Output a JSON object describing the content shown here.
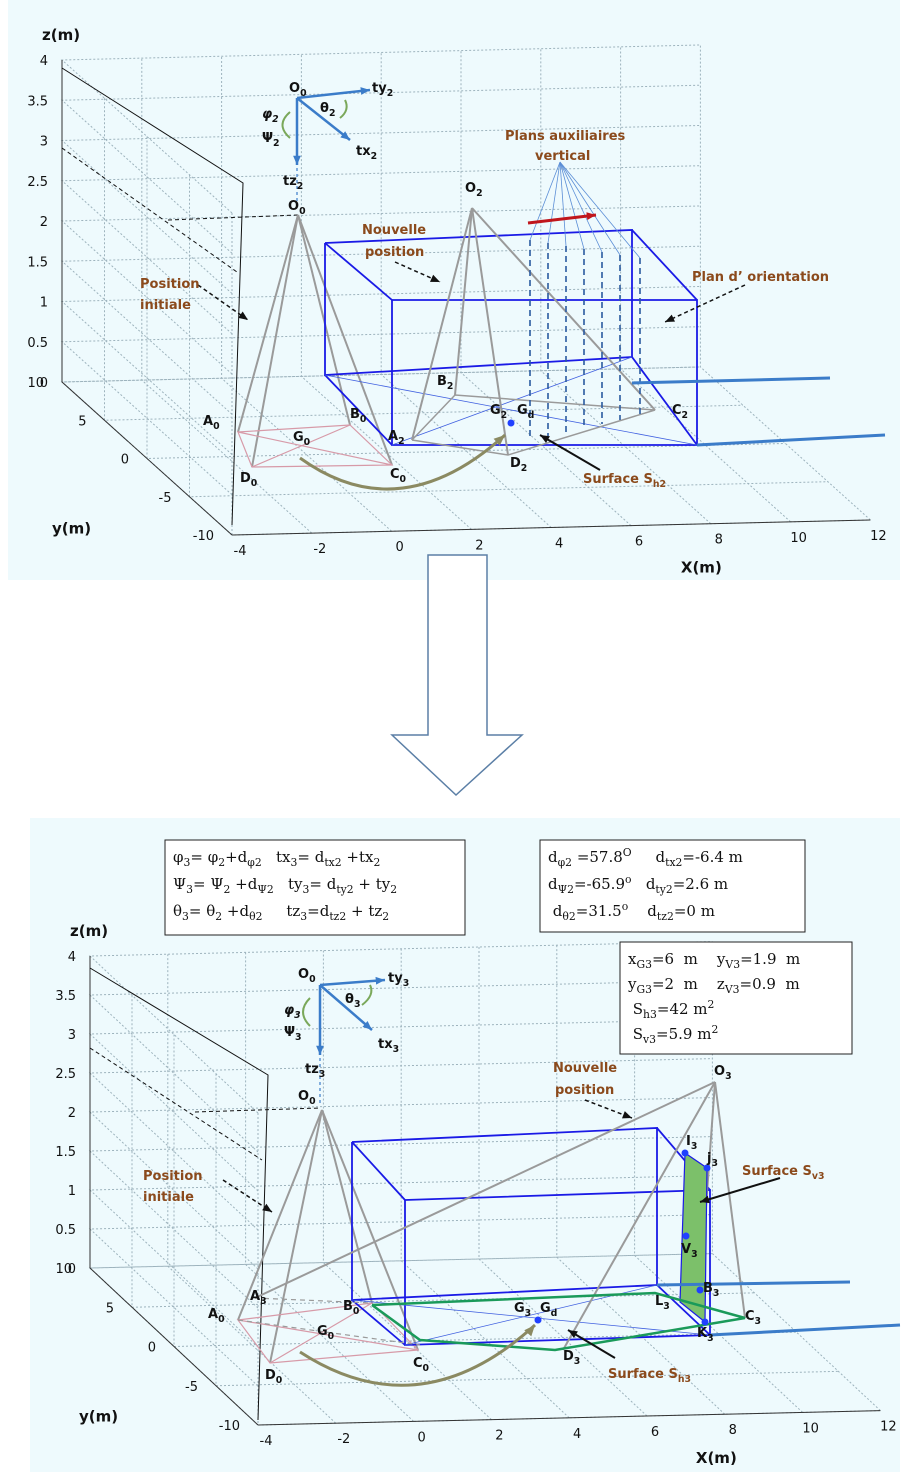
{
  "panel1": {
    "axes": {
      "z_label": "z(m)",
      "y_label": "y(m)",
      "x_label": "X(m)",
      "z_ticks": [
        0,
        0.5,
        1,
        1.5,
        2,
        2.5,
        3,
        3.5,
        4
      ],
      "y_ticks": [
        -10,
        -5,
        0,
        5,
        10
      ],
      "x_ticks": [
        -4,
        -2,
        0,
        2,
        4,
        6,
        8,
        10,
        12
      ]
    },
    "labels": [
      [
        "O",
        {
          "sub": "0"
        }
      ],
      [
        "ty",
        {
          "sub": "2"
        }
      ],
      [
        "θ",
        {
          "sub": "2"
        }
      ],
      [
        "φ",
        {
          "sub": "2"
        }
      ],
      [
        "Ψ",
        {
          "sub": "2"
        }
      ],
      [
        "tx",
        {
          "sub": "2"
        }
      ],
      [
        "tz",
        {
          "sub": "2"
        }
      ],
      [
        "O",
        {
          "sub": "0"
        }
      ],
      [
        "O",
        {
          "sub": "2"
        }
      ],
      [
        "B",
        {
          "sub": "2"
        }
      ],
      [
        "G",
        {
          "sub": "2"
        }
      ],
      [
        "G",
        {
          "sub": "d"
        }
      ],
      [
        "B",
        {
          "sub": "0"
        }
      ],
      [
        "A",
        {
          "sub": "0"
        }
      ],
      [
        "G",
        {
          "sub": "0"
        }
      ],
      [
        "A",
        {
          "sub": "2"
        }
      ],
      [
        "C",
        {
          "sub": "0"
        }
      ],
      [
        "D",
        {
          "sub": "0"
        }
      ],
      [
        "D",
        {
          "sub": "2"
        }
      ],
      [
        "C",
        {
          "sub": "2"
        }
      ]
    ],
    "annotations": [
      [
        "Position"
      ],
      [
        "initiale"
      ],
      [
        "Nouvelle"
      ],
      [
        "position"
      ],
      [
        "Plans auxiliaires"
      ],
      [
        "vertical"
      ],
      [
        "Plan d’ orientation"
      ],
      [
        "Surface S",
        {
          "sub": "h2"
        }
      ]
    ]
  },
  "panel2": {
    "axes": {
      "z_label": "z(m)",
      "y_label": "y(m)",
      "x_label": "X(m)",
      "z_ticks": [
        0,
        0.5,
        1,
        1.5,
        2,
        2.5,
        3,
        3.5,
        4
      ],
      "y_ticks": [
        -10,
        -5,
        0,
        5,
        10
      ],
      "x_ticks": [
        -4,
        -2,
        0,
        2,
        4,
        6,
        8,
        10,
        12
      ]
    },
    "labels": [
      [
        "O",
        {
          "sub": "0"
        }
      ],
      [
        "ty",
        {
          "sub": "3"
        }
      ],
      [
        "θ",
        {
          "sub": "3"
        }
      ],
      [
        "φ",
        {
          "sub": "3"
        }
      ],
      [
        "Ψ",
        {
          "sub": "3"
        }
      ],
      [
        "tx",
        {
          "sub": "3"
        }
      ],
      [
        "tz",
        {
          "sub": "3"
        }
      ],
      [
        "O",
        {
          "sub": "0"
        }
      ],
      [
        "O",
        {
          "sub": "3"
        }
      ],
      [
        "I",
        {
          "sub": "3"
        }
      ],
      [
        "j",
        {
          "sub": "3"
        }
      ],
      [
        "V",
        {
          "sub": "3"
        }
      ],
      [
        "B",
        {
          "sub": "3"
        }
      ],
      [
        "L",
        {
          "sub": "3"
        }
      ],
      [
        "C",
        {
          "sub": "3"
        }
      ],
      [
        "K",
        {
          "sub": "3"
        }
      ],
      [
        "A",
        {
          "sub": "3"
        }
      ],
      [
        "B",
        {
          "sub": "0"
        }
      ],
      [
        "A",
        {
          "sub": "0"
        }
      ],
      [
        "G",
        {
          "sub": "0"
        }
      ],
      [
        "G",
        {
          "sub": "3"
        }
      ],
      [
        "G",
        {
          "sub": "d"
        }
      ],
      [
        "C",
        {
          "sub": "0"
        }
      ],
      [
        "D",
        {
          "sub": "0"
        }
      ],
      [
        "D",
        {
          "sub": "3"
        }
      ]
    ],
    "annotations": [
      [
        "Nouvelle"
      ],
      [
        "position"
      ],
      [
        "Surface S",
        {
          "sub": "v3"
        }
      ],
      [
        "Position"
      ],
      [
        "initiale"
      ],
      [
        "Surface S",
        {
          "sub": "h3"
        }
      ]
    ],
    "equations": [
      [
        "φ",
        {
          "sub": "3"
        },
        "= φ",
        {
          "sub": "2"
        },
        "+d",
        {
          "sub": "φ2"
        },
        "   tx",
        {
          "sub": "3"
        },
        "= d",
        {
          "sub": "tx2"
        },
        " +tx",
        {
          "sub": "2"
        }
      ],
      [
        "Ψ",
        {
          "sub": "3"
        },
        "= Ψ",
        {
          "sub": "2"
        },
        " +d",
        {
          "sub": "Ψ2"
        },
        "   ty",
        {
          "sub": "3"
        },
        "= d",
        {
          "sub": "ty2"
        },
        " + ty",
        {
          "sub": "2"
        }
      ],
      [
        "θ",
        {
          "sub": "3"
        },
        "= θ",
        {
          "sub": "2"
        },
        " +d",
        {
          "sub": "θ2"
        },
        "     tz",
        {
          "sub": "3"
        },
        "=d",
        {
          "sub": "tz2"
        },
        " + tz",
        {
          "sub": "2"
        }
      ]
    ],
    "parameters": [
      [
        "d",
        {
          "sub": "φ2"
        },
        " =57.8",
        {
          "sup": "O"
        },
        "     d",
        {
          "sub": "tx2"
        },
        "=-6.4 m"
      ],
      [
        "d",
        {
          "sub": "Ψ2"
        },
        "=-65.9",
        {
          "sup": "o"
        },
        "   d",
        {
          "sub": "ty2"
        },
        "=2.6 m"
      ],
      [
        " d",
        {
          "sub": "θ2"
        },
        "=31.5",
        {
          "sup": "o"
        },
        "    d",
        {
          "sub": "tz2"
        },
        "=0 m"
      ]
    ],
    "results": [
      [
        "x",
        {
          "sub": "G3"
        },
        "=6  m    y",
        {
          "sub": "V3"
        },
        "=1.9  m"
      ],
      [
        "y",
        {
          "sub": "G3"
        },
        "=2  m    z",
        {
          "sub": "V3"
        },
        "=0.9  m"
      ],
      [
        " S",
        {
          "sub": "h3"
        },
        "=42 m",
        {
          "sup": "2"
        }
      ],
      [
        " S",
        {
          "sub": "v3"
        },
        "=5.9 m",
        {
          "sup": "2"
        }
      ]
    ]
  }
}
